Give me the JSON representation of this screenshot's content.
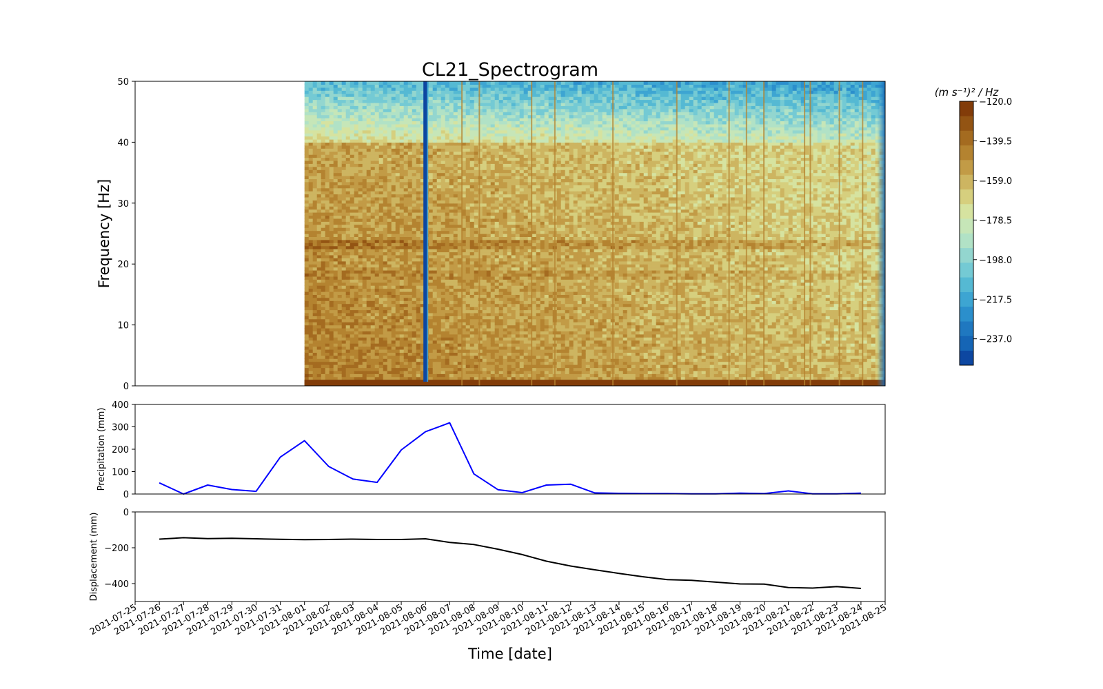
{
  "chart_data": [
    {
      "type": "heatmap",
      "title": "CL21_Spectrogram",
      "ylabel": "Frequency [Hz]",
      "ylim": [
        0,
        50
      ],
      "yticks": [
        "0",
        "10",
        "20",
        "30",
        "40",
        "50"
      ],
      "data_start": "2021-08-01",
      "data_end": "2021-08-25",
      "dropout_date": "2021-08-06",
      "colorbar": {
        "label": "(m s⁻¹)² / Hz",
        "range": [
          -250,
          -120
        ],
        "ticks": [
          "−120.0",
          "−139.5",
          "−159.0",
          "−178.5",
          "−198.0",
          "−217.5",
          "−237.0"
        ],
        "colors": [
          "#0d47a1",
          "#1565b5",
          "#1f78c0",
          "#2b8fcc",
          "#3da5d2",
          "#55b9d3",
          "#74cad4",
          "#93d6cf",
          "#b1e2c6",
          "#c6e6b8",
          "#d6e3a0",
          "#d6cf7e",
          "#cdb561",
          "#c29b46",
          "#b48330",
          "#a46b20",
          "#935413",
          "#823c09"
        ]
      }
    },
    {
      "type": "line",
      "ylabel": "Precipitation (mm)",
      "ylim": [
        0,
        400
      ],
      "yticks": [
        "0",
        "100",
        "200",
        "300",
        "400"
      ],
      "series": [
        {
          "color": "#0000ff",
          "x": [
            "2021-07-26",
            "2021-07-27",
            "2021-07-28",
            "2021-07-29",
            "2021-07-30",
            "2021-07-31",
            "2021-08-01",
            "2021-08-02",
            "2021-08-03",
            "2021-08-04",
            "2021-08-05",
            "2021-08-06",
            "2021-08-07",
            "2021-08-08",
            "2021-08-09",
            "2021-08-10",
            "2021-08-11",
            "2021-08-12",
            "2021-08-13",
            "2021-08-14",
            "2021-08-15",
            "2021-08-16",
            "2021-08-17",
            "2021-08-18",
            "2021-08-19",
            "2021-08-20",
            "2021-08-21",
            "2021-08-22",
            "2021-08-23",
            "2021-08-24"
          ],
          "values": [
            50,
            0,
            40,
            20,
            12,
            165,
            238,
            123,
            67,
            52,
            197,
            278,
            318,
            90,
            19,
            6,
            40,
            44,
            5,
            3,
            2,
            2,
            1,
            1,
            4,
            2,
            14,
            1,
            1,
            4
          ]
        }
      ]
    },
    {
      "type": "line",
      "xlabel": "Time [date]",
      "ylabel": "Displacement (mm)",
      "ylim": [
        -500,
        0
      ],
      "yticks": [
        "−400",
        "−200",
        "0"
      ],
      "series": [
        {
          "color": "#000000",
          "x": [
            "2021-07-26",
            "2021-07-27",
            "2021-07-28",
            "2021-07-29",
            "2021-07-30",
            "2021-07-31",
            "2021-08-01",
            "2021-08-02",
            "2021-08-03",
            "2021-08-04",
            "2021-08-05",
            "2021-08-06",
            "2021-08-07",
            "2021-08-08",
            "2021-08-09",
            "2021-08-10",
            "2021-08-11",
            "2021-08-12",
            "2021-08-13",
            "2021-08-14",
            "2021-08-15",
            "2021-08-16",
            "2021-08-17",
            "2021-08-18",
            "2021-08-19",
            "2021-08-20",
            "2021-08-21",
            "2021-08-22",
            "2021-08-23",
            "2021-08-24"
          ],
          "values": [
            -152,
            -144,
            -149,
            -147,
            -150,
            -153,
            -155,
            -154,
            -152,
            -154,
            -154,
            -150,
            -170,
            -182,
            -208,
            -238,
            -275,
            -302,
            -323,
            -343,
            -362,
            -378,
            -382,
            -392,
            -402,
            -403,
            -422,
            -425,
            -417,
            -427
          ]
        }
      ]
    }
  ],
  "x_axis": {
    "range": [
      "2021-07-25",
      "2021-08-25"
    ],
    "ticks": [
      "2021-07-25",
      "2021-07-26",
      "2021-07-27",
      "2021-07-28",
      "2021-07-29",
      "2021-07-30",
      "2021-07-31",
      "2021-08-01",
      "2021-08-02",
      "2021-08-03",
      "2021-08-04",
      "2021-08-05",
      "2021-08-06",
      "2021-08-07",
      "2021-08-08",
      "2021-08-09",
      "2021-08-10",
      "2021-08-11",
      "2021-08-12",
      "2021-08-13",
      "2021-08-14",
      "2021-08-15",
      "2021-08-16",
      "2021-08-17",
      "2021-08-18",
      "2021-08-19",
      "2021-08-20",
      "2021-08-21",
      "2021-08-22",
      "2021-08-23",
      "2021-08-24",
      "2021-08-25"
    ]
  }
}
